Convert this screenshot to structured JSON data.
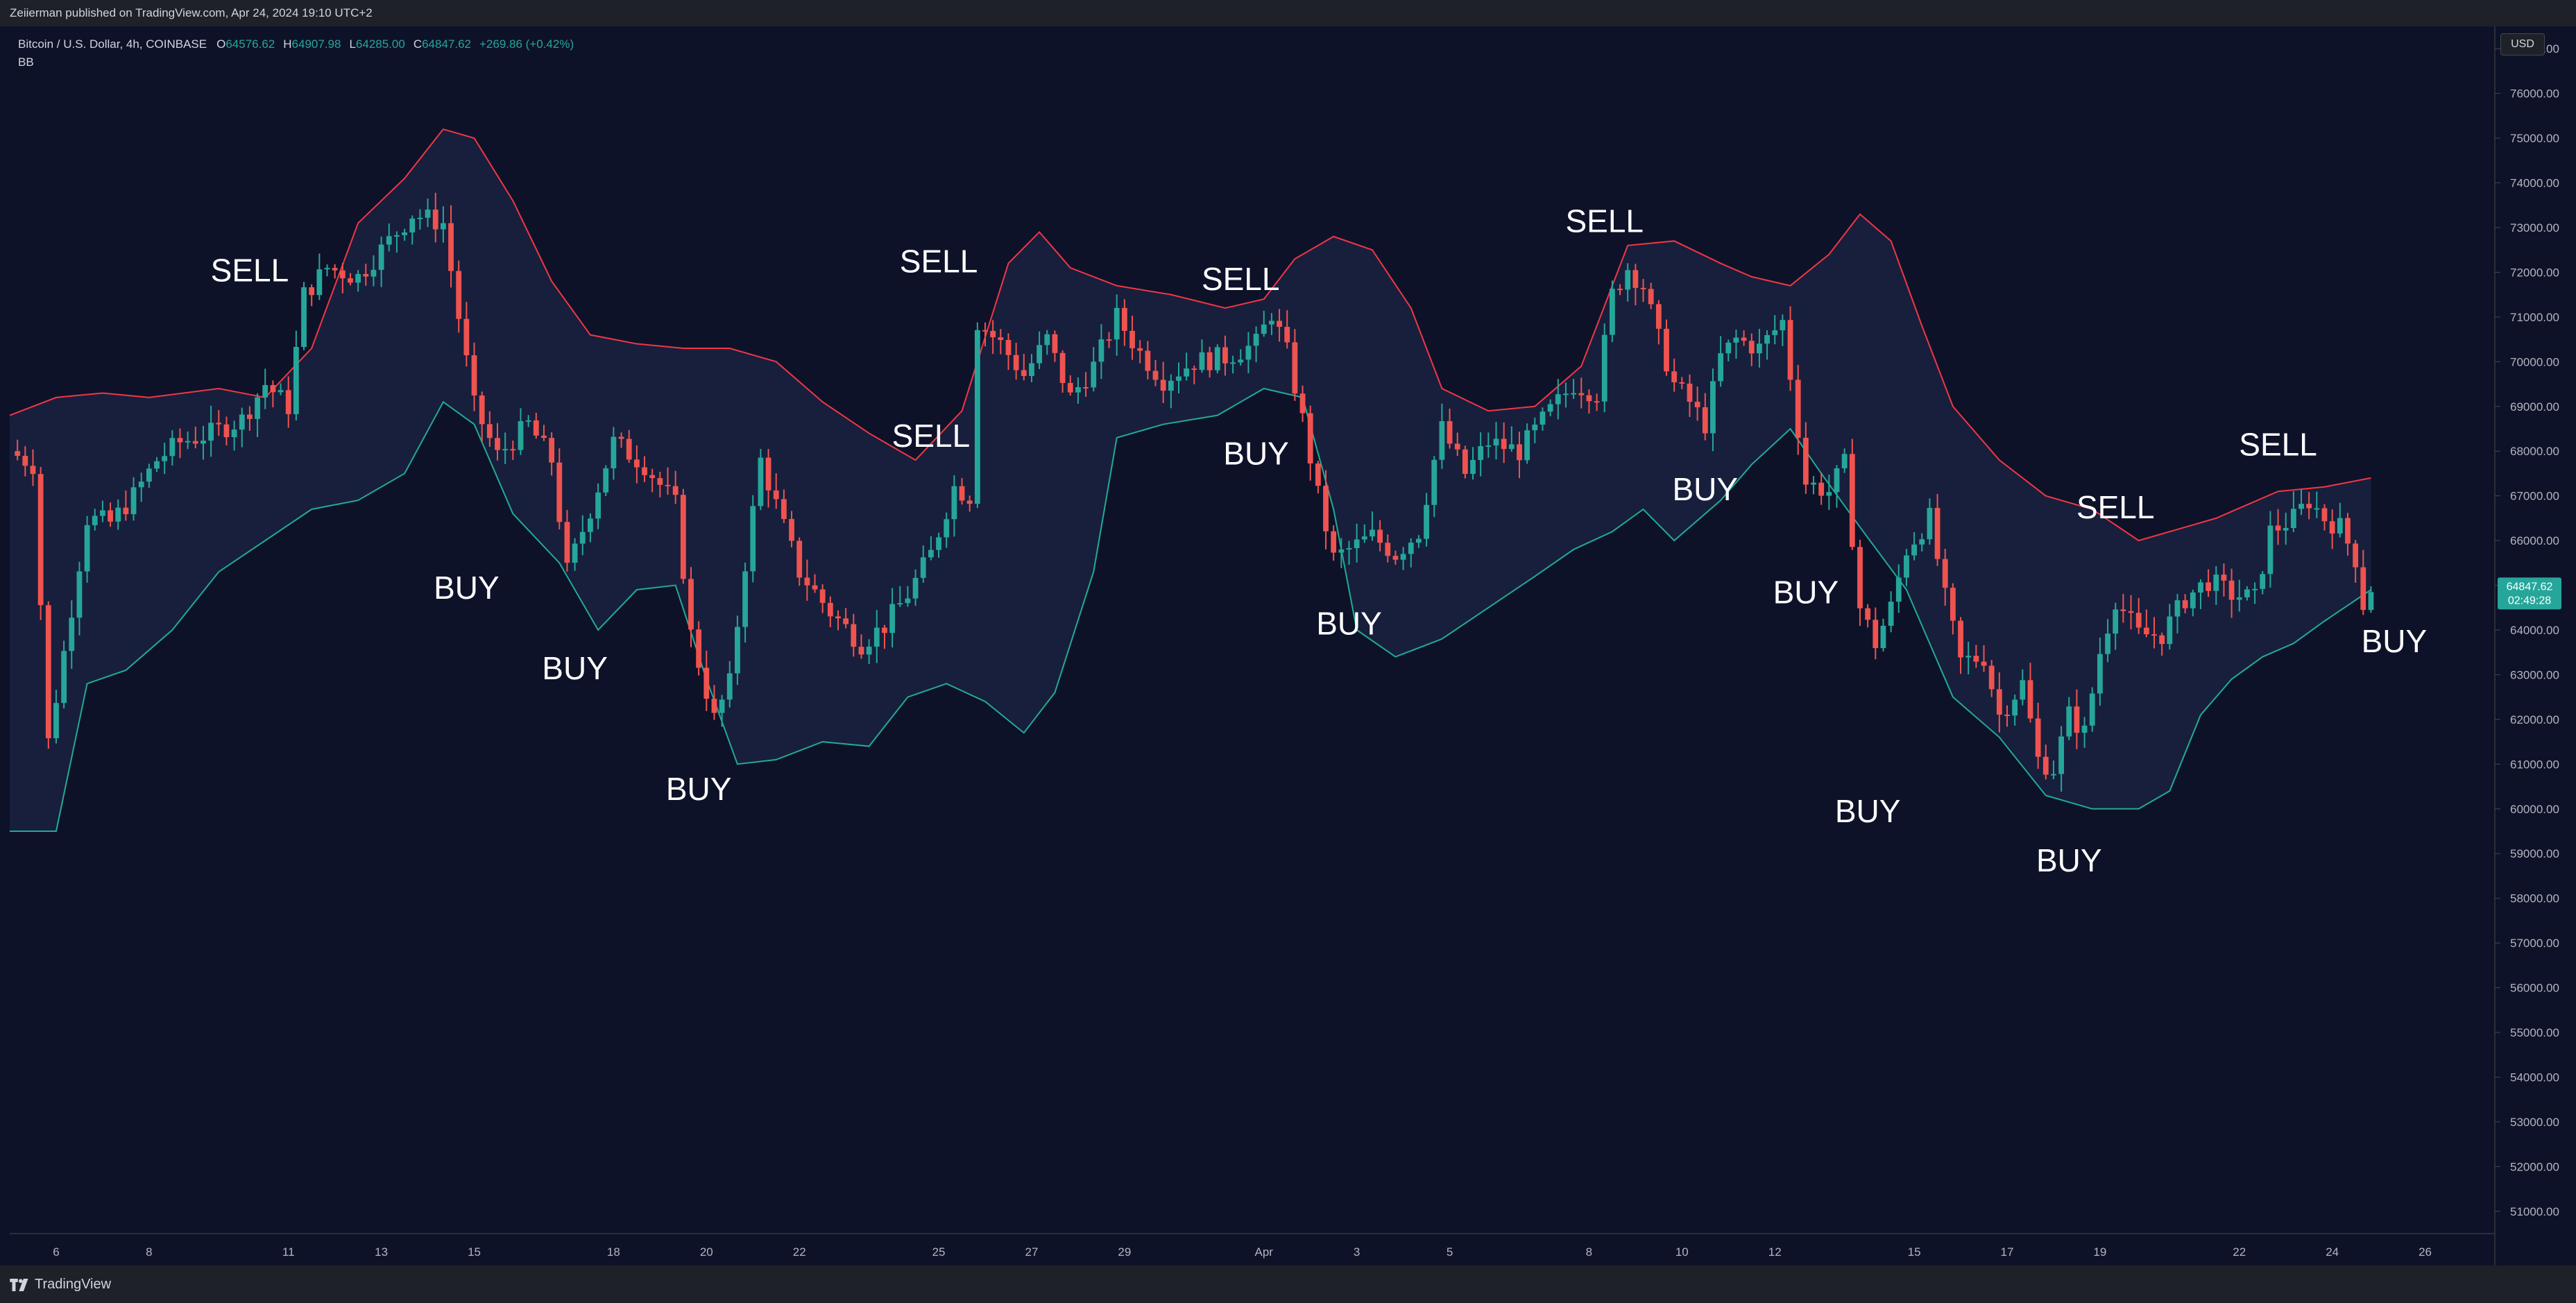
{
  "header": {
    "publisher": "Zeiierman published on TradingView.com, Apr 24, 2024 19:10 UTC+2"
  },
  "legend": {
    "symbol": "Bitcoin / U.S. Dollar, 4h, COINBASE",
    "open_label": "O",
    "open": "64576.62",
    "high_label": "H",
    "high": "64907.98",
    "low_label": "L",
    "low": "64285.00",
    "close_label": "C",
    "close": "64847.62",
    "change": "+269.86 (+0.42%)",
    "indicator": "BB"
  },
  "currency_button": "USD",
  "last_price_badge": {
    "price": "64847.62",
    "countdown": "02:49:28"
  },
  "footer": {
    "brand": "TradingView"
  },
  "colors": {
    "background": "#0e1229",
    "up": "#26a69a",
    "down": "#ef5350",
    "upper_band": "#f23645",
    "lower_band": "#22ab94",
    "band_fill": "#171f3c",
    "text": "#ffffff",
    "axis_text": "#b2b5be"
  },
  "chart_data": {
    "type": "candlestick",
    "ylim": [
      50500,
      77500
    ],
    "y_ticks": [
      51000,
      52000,
      53000,
      54000,
      55000,
      56000,
      57000,
      58000,
      59000,
      60000,
      61000,
      62000,
      63000,
      64000,
      65000,
      66000,
      67000,
      68000,
      69000,
      70000,
      71000,
      72000,
      73000,
      74000,
      75000,
      76000,
      77000
    ],
    "y_tick_labels": [
      "51000.00",
      "52000.00",
      "53000.00",
      "54000.00",
      "55000.00",
      "56000.00",
      "57000.00",
      "58000.00",
      "59000.00",
      "60000.00",
      "61000.00",
      "62000.00",
      "63000.00",
      "64000.00",
      "65000.00",
      "66000.00",
      "67000.00",
      "68000.00",
      "69000.00",
      "70000.00",
      "71000.00",
      "72000.00",
      "73000.00",
      "74000.00",
      "75000.00",
      "76000.00",
      "77000.00"
    ],
    "x_ticks": [
      {
        "label": "6",
        "t": "2024-03-06"
      },
      {
        "label": "8",
        "t": "2024-03-08"
      },
      {
        "label": "11",
        "t": "2024-03-11"
      },
      {
        "label": "13",
        "t": "2024-03-13"
      },
      {
        "label": "15",
        "t": "2024-03-15"
      },
      {
        "label": "18",
        "t": "2024-03-18"
      },
      {
        "label": "20",
        "t": "2024-03-20"
      },
      {
        "label": "22",
        "t": "2024-03-22"
      },
      {
        "label": "25",
        "t": "2024-03-25"
      },
      {
        "label": "27",
        "t": "2024-03-27"
      },
      {
        "label": "29",
        "t": "2024-03-29"
      },
      {
        "label": "Apr",
        "t": "2024-04-01"
      },
      {
        "label": "3",
        "t": "2024-04-03"
      },
      {
        "label": "5",
        "t": "2024-04-05"
      },
      {
        "label": "8",
        "t": "2024-04-08"
      },
      {
        "label": "10",
        "t": "2024-04-10"
      },
      {
        "label": "12",
        "t": "2024-04-12"
      },
      {
        "label": "15",
        "t": "2024-04-15"
      },
      {
        "label": "17",
        "t": "2024-04-17"
      },
      {
        "label": "19",
        "t": "2024-04-19"
      },
      {
        "label": "22",
        "t": "2024-04-22"
      },
      {
        "label": "24",
        "t": "2024-04-24"
      },
      {
        "label": "26",
        "t": "2024-04-26"
      }
    ],
    "close_path": [
      [
        "2024-03-05 00:00",
        68000
      ],
      [
        "2024-03-05 12:00",
        67700
      ],
      [
        "2024-03-05 20:00",
        61500
      ],
      [
        "2024-03-06 04:00",
        63500
      ],
      [
        "2024-03-06 16:00",
        66500
      ],
      [
        "2024-03-07 04:00",
        66400
      ],
      [
        "2024-03-07 16:00",
        67000
      ],
      [
        "2024-03-08 04:00",
        67800
      ],
      [
        "2024-03-08 16:00",
        68200
      ],
      [
        "2024-03-09 08:00",
        68400
      ],
      [
        "2024-03-10 00:00",
        68700
      ],
      [
        "2024-03-10 12:00",
        69500
      ],
      [
        "2024-03-11 00:00",
        69000
      ],
      [
        "2024-03-11 08:00",
        71500
      ],
      [
        "2024-03-11 20:00",
        72100
      ],
      [
        "2024-03-12 12:00",
        71900
      ],
      [
        "2024-03-13 00:00",
        72500
      ],
      [
        "2024-03-13 16:00",
        73300
      ],
      [
        "2024-03-14 08:00",
        73100
      ],
      [
        "2024-03-14 16:00",
        71000
      ],
      [
        "2024-03-15 00:00",
        69000
      ],
      [
        "2024-03-15 12:00",
        67900
      ],
      [
        "2024-03-16 04:00",
        68600
      ],
      [
        "2024-03-16 16:00",
        67800
      ],
      [
        "2024-03-17 00:00",
        65300
      ],
      [
        "2024-03-17 12:00",
        66700
      ],
      [
        "2024-03-18 00:00",
        68200
      ],
      [
        "2024-03-18 16:00",
        67700
      ],
      [
        "2024-03-19 08:00",
        66800
      ],
      [
        "2024-03-19 16:00",
        63900
      ],
      [
        "2024-03-20 04:00",
        62000
      ],
      [
        "2024-03-20 12:00",
        62800
      ],
      [
        "2024-03-20 20:00",
        65500
      ],
      [
        "2024-03-21 04:00",
        67800
      ],
      [
        "2024-03-21 12:00",
        66800
      ],
      [
        "2024-03-22 00:00",
        65300
      ],
      [
        "2024-03-22 16:00",
        64400
      ],
      [
        "2024-03-23 08:00",
        63700
      ],
      [
        "2024-03-23 20:00",
        64100
      ],
      [
        "2024-03-24 08:00",
        64800
      ],
      [
        "2024-03-24 20:00",
        65700
      ],
      [
        "2024-03-25 08:00",
        67200
      ],
      [
        "2024-03-25 16:00",
        67000
      ],
      [
        "2024-03-25 20:00",
        70900
      ],
      [
        "2024-03-26 08:00",
        70400
      ],
      [
        "2024-03-26 20:00",
        69700
      ],
      [
        "2024-03-27 08:00",
        70500
      ],
      [
        "2024-03-27 20:00",
        69200
      ],
      [
        "2024-03-28 08:00",
        69900
      ],
      [
        "2024-03-28 20:00",
        71000
      ],
      [
        "2024-03-29 08:00",
        70200
      ],
      [
        "2024-03-29 20:00",
        69600
      ],
      [
        "2024-03-30 12:00",
        70000
      ],
      [
        "2024-03-31 04:00",
        70100
      ],
      [
        "2024-03-31 20:00",
        70400
      ],
      [
        "2024-04-01 04:00",
        71100
      ],
      [
        "2024-04-01 12:00",
        70200
      ],
      [
        "2024-04-01 20:00",
        68700
      ],
      [
        "2024-04-02 04:00",
        67000
      ],
      [
        "2024-04-02 12:00",
        65600
      ],
      [
        "2024-04-02 20:00",
        65800
      ],
      [
        "2024-04-03 08:00",
        66100
      ],
      [
        "2024-04-03 20:00",
        65700
      ],
      [
        "2024-04-04 08:00",
        66200
      ],
      [
        "2024-04-04 16:00",
        67800
      ],
      [
        "2024-04-04 20:00",
        68500
      ],
      [
        "2024-04-05 08:00",
        67500
      ],
      [
        "2024-04-05 20:00",
        68200
      ],
      [
        "2024-04-06 12:00",
        68000
      ],
      [
        "2024-04-07 04:00",
        68900
      ],
      [
        "2024-04-07 16:00",
        69500
      ],
      [
        "2024-04-08 04:00",
        69300
      ],
      [
        "2024-04-08 12:00",
        71500
      ],
      [
        "2024-04-08 20:00",
        72100
      ],
      [
        "2024-04-09 04:00",
        71700
      ],
      [
        "2024-04-09 12:00",
        70500
      ],
      [
        "2024-04-09 20:00",
        69500
      ],
      [
        "2024-04-10 04:00",
        69100
      ],
      [
        "2024-04-10 12:00",
        68600
      ],
      [
        "2024-04-10 20:00",
        70100
      ],
      [
        "2024-04-11 04:00",
        70500
      ],
      [
        "2024-04-11 16:00",
        70300
      ],
      [
        "2024-04-12 04:00",
        70900
      ],
      [
        "2024-04-12 16:00",
        67300
      ],
      [
        "2024-04-13 04:00",
        67100
      ],
      [
        "2024-04-13 12:00",
        67700
      ],
      [
        "2024-04-13 20:00",
        64500
      ],
      [
        "2024-04-14 04:00",
        63700
      ],
      [
        "2024-04-14 12:00",
        64500
      ],
      [
        "2024-04-14 20:00",
        65800
      ],
      [
        "2024-04-15 08:00",
        66500
      ],
      [
        "2024-04-15 16:00",
        64700
      ],
      [
        "2024-04-16 00:00",
        63300
      ],
      [
        "2024-04-16 12:00",
        63400
      ],
      [
        "2024-04-16 20:00",
        62100
      ],
      [
        "2024-04-17 08:00",
        62800
      ],
      [
        "2024-04-17 16:00",
        61100
      ],
      [
        "2024-04-18 00:00",
        60900
      ],
      [
        "2024-04-18 08:00",
        62100
      ],
      [
        "2024-04-18 16:00",
        61700
      ],
      [
        "2024-04-19 00:00",
        63500
      ],
      [
        "2024-04-19 08:00",
        64700
      ],
      [
        "2024-04-19 20:00",
        63900
      ],
      [
        "2024-04-20 08:00",
        63900
      ],
      [
        "2024-04-20 20:00",
        64700
      ],
      [
        "2024-04-21 08:00",
        65100
      ],
      [
        "2024-04-21 20:00",
        64800
      ],
      [
        "2024-04-22 08:00",
        64700
      ],
      [
        "2024-04-22 16:00",
        66200
      ],
      [
        "2024-04-23 04:00",
        66500
      ],
      [
        "2024-04-23 12:00",
        66900
      ],
      [
        "2024-04-23 20:00",
        66500
      ],
      [
        "2024-04-24 04:00",
        66300
      ],
      [
        "2024-04-24 12:00",
        65600
      ],
      [
        "2024-04-24 16:00",
        64576.62
      ],
      [
        "2024-04-24 20:00",
        64847.62
      ]
    ],
    "upper_band": [
      [
        "2024-03-05 00:00",
        68800
      ],
      [
        "2024-03-06 00:00",
        69200
      ],
      [
        "2024-03-07 00:00",
        69300
      ],
      [
        "2024-03-08 00:00",
        69200
      ],
      [
        "2024-03-09 12:00",
        69400
      ],
      [
        "2024-03-10 12:00",
        69200
      ],
      [
        "2024-03-11 12:00",
        70300
      ],
      [
        "2024-03-12 12:00",
        73100
      ],
      [
        "2024-03-13 12:00",
        74100
      ],
      [
        "2024-03-14 08:00",
        75200
      ],
      [
        "2024-03-15 00:00",
        75000
      ],
      [
        "2024-03-15 20:00",
        73600
      ],
      [
        "2024-03-16 16:00",
        71800
      ],
      [
        "2024-03-17 12:00",
        70600
      ],
      [
        "2024-03-18 12:00",
        70400
      ],
      [
        "2024-03-19 12:00",
        70300
      ],
      [
        "2024-03-20 12:00",
        70300
      ],
      [
        "2024-03-21 12:00",
        70000
      ],
      [
        "2024-03-22 12:00",
        69100
      ],
      [
        "2024-03-23 12:00",
        68400
      ],
      [
        "2024-03-24 12:00",
        67800
      ],
      [
        "2024-03-25 12:00",
        68900
      ],
      [
        "2024-03-26 12:00",
        72200
      ],
      [
        "2024-03-27 04:00",
        72900
      ],
      [
        "2024-03-27 20:00",
        72100
      ],
      [
        "2024-03-28 20:00",
        71700
      ],
      [
        "2024-03-30 00:00",
        71500
      ],
      [
        "2024-03-31 04:00",
        71200
      ],
      [
        "2024-04-01 00:00",
        71400
      ],
      [
        "2024-04-01 16:00",
        72300
      ],
      [
        "2024-04-02 12:00",
        72800
      ],
      [
        "2024-04-03 08:00",
        72500
      ],
      [
        "2024-04-04 04:00",
        71200
      ],
      [
        "2024-04-04 20:00",
        69400
      ],
      [
        "2024-04-05 20:00",
        68900
      ],
      [
        "2024-04-06 20:00",
        69000
      ],
      [
        "2024-04-07 20:00",
        69900
      ],
      [
        "2024-04-08 20:00",
        72600
      ],
      [
        "2024-04-09 20:00",
        72700
      ],
      [
        "2024-04-10 20:00",
        72200
      ],
      [
        "2024-04-11 12:00",
        71900
      ],
      [
        "2024-04-12 08:00",
        71700
      ],
      [
        "2024-04-13 04:00",
        72400
      ],
      [
        "2024-04-13 20:00",
        73300
      ],
      [
        "2024-04-14 12:00",
        72700
      ],
      [
        "2024-04-15 04:00",
        70800
      ],
      [
        "2024-04-15 20:00",
        69000
      ],
      [
        "2024-04-16 20:00",
        67800
      ],
      [
        "2024-04-17 20:00",
        67000
      ],
      [
        "2024-04-18 20:00",
        66700
      ],
      [
        "2024-04-19 20:00",
        66000
      ],
      [
        "2024-04-20 20:00",
        66300
      ],
      [
        "2024-04-21 12:00",
        66500
      ],
      [
        "2024-04-22 04:00",
        66800
      ],
      [
        "2024-04-22 20:00",
        67100
      ],
      [
        "2024-04-23 20:00",
        67200
      ],
      [
        "2024-04-24 20:00",
        67400
      ]
    ],
    "lower_band": [
      [
        "2024-03-05 00:00",
        59500
      ],
      [
        "2024-03-06 00:00",
        59500
      ],
      [
        "2024-03-06 16:00",
        62800
      ],
      [
        "2024-03-07 12:00",
        63100
      ],
      [
        "2024-03-08 12:00",
        64000
      ],
      [
        "2024-03-09 12:00",
        65300
      ],
      [
        "2024-03-10 12:00",
        66000
      ],
      [
        "2024-03-11 12:00",
        66700
      ],
      [
        "2024-03-12 12:00",
        66900
      ],
      [
        "2024-03-13 12:00",
        67500
      ],
      [
        "2024-03-14 08:00",
        69100
      ],
      [
        "2024-03-15 00:00",
        68600
      ],
      [
        "2024-03-15 20:00",
        66600
      ],
      [
        "2024-03-16 20:00",
        65500
      ],
      [
        "2024-03-17 16:00",
        64000
      ],
      [
        "2024-03-18 12:00",
        64900
      ],
      [
        "2024-03-19 08:00",
        65000
      ],
      [
        "2024-03-20 00:00",
        62900
      ],
      [
        "2024-03-20 16:00",
        61000
      ],
      [
        "2024-03-21 12:00",
        61100
      ],
      [
        "2024-03-22 12:00",
        61500
      ],
      [
        "2024-03-23 12:00",
        61400
      ],
      [
        "2024-03-24 08:00",
        62500
      ],
      [
        "2024-03-25 04:00",
        62800
      ],
      [
        "2024-03-26 00:00",
        62400
      ],
      [
        "2024-03-26 20:00",
        61700
      ],
      [
        "2024-03-27 12:00",
        62600
      ],
      [
        "2024-03-28 08:00",
        65300
      ],
      [
        "2024-03-28 20:00",
        68300
      ],
      [
        "2024-03-29 20:00",
        68600
      ],
      [
        "2024-03-31 00:00",
        68800
      ],
      [
        "2024-04-01 00:00",
        69400
      ],
      [
        "2024-04-01 20:00",
        69200
      ],
      [
        "2024-04-02 12:00",
        66700
      ],
      [
        "2024-04-03 00:00",
        64000
      ],
      [
        "2024-04-03 20:00",
        63400
      ],
      [
        "2024-04-04 20:00",
        63800
      ],
      [
        "2024-04-05 20:00",
        64500
      ],
      [
        "2024-04-06 20:00",
        65200
      ],
      [
        "2024-04-07 16:00",
        65800
      ],
      [
        "2024-04-08 12:00",
        66200
      ],
      [
        "2024-04-09 04:00",
        66700
      ],
      [
        "2024-04-09 20:00",
        66000
      ],
      [
        "2024-04-10 20:00",
        66900
      ],
      [
        "2024-04-11 12:00",
        67700
      ],
      [
        "2024-04-12 08:00",
        68500
      ],
      [
        "2024-04-13 00:00",
        67500
      ],
      [
        "2024-04-13 20:00",
        66300
      ],
      [
        "2024-04-14 20:00",
        64900
      ],
      [
        "2024-04-15 20:00",
        62500
      ],
      [
        "2024-04-16 20:00",
        61600
      ],
      [
        "2024-04-17 20:00",
        60300
      ],
      [
        "2024-04-18 20:00",
        60000
      ],
      [
        "2024-04-19 20:00",
        60000
      ],
      [
        "2024-04-20 12:00",
        60400
      ],
      [
        "2024-04-21 04:00",
        62100
      ],
      [
        "2024-04-21 20:00",
        62900
      ],
      [
        "2024-04-22 12:00",
        63400
      ],
      [
        "2024-04-23 04:00",
        63700
      ],
      [
        "2024-04-23 20:00",
        64200
      ],
      [
        "2024-04-24 20:00",
        64900
      ]
    ],
    "annotations": [
      {
        "text": "SELL",
        "t": "2024-03-10 04:00",
        "price": 71800
      },
      {
        "text": "BUY",
        "t": "2024-03-14 20:00",
        "price": 64700
      },
      {
        "text": "BUY",
        "t": "2024-03-17 04:00",
        "price": 62900
      },
      {
        "text": "BUY",
        "t": "2024-03-19 20:00",
        "price": 60200
      },
      {
        "text": "SELL",
        "t": "2024-03-25 00:00",
        "price": 72000
      },
      {
        "text": "SELL",
        "t": "2024-03-24 20:00",
        "price": 68100
      },
      {
        "text": "SELL",
        "t": "2024-03-31 12:00",
        "price": 71600
      },
      {
        "text": "BUY",
        "t": "2024-03-31 20:00",
        "price": 67700
      },
      {
        "text": "BUY",
        "t": "2024-04-02 20:00",
        "price": 63900
      },
      {
        "text": "SELL",
        "t": "2024-04-08 08:00",
        "price": 72900
      },
      {
        "text": "BUY",
        "t": "2024-04-10 12:00",
        "price": 66900
      },
      {
        "text": "BUY",
        "t": "2024-04-12 16:00",
        "price": 64600
      },
      {
        "text": "BUY",
        "t": "2024-04-14 00:00",
        "price": 59700
      },
      {
        "text": "SELL",
        "t": "2024-04-19 08:00",
        "price": 66500
      },
      {
        "text": "BUY",
        "t": "2024-04-18 08:00",
        "price": 58600
      },
      {
        "text": "SELL",
        "t": "2024-04-22 20:00",
        "price": 67900
      },
      {
        "text": "BUY",
        "t": "2024-04-25 08:00",
        "price": 63500
      }
    ],
    "grid": false
  }
}
